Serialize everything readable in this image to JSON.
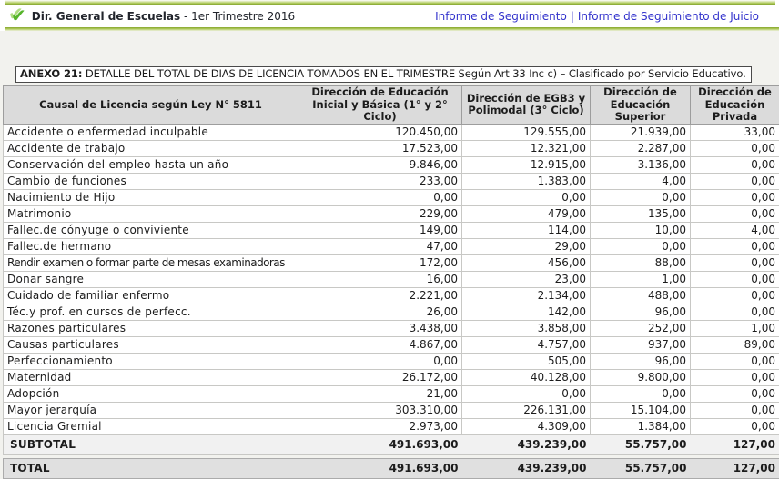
{
  "topbar": {
    "check_icon": "✔",
    "title_bold": "Dir. General de Escuelas",
    "title_rest": " - 1er Trimestre 2016",
    "links": [
      "Informe de Seguimiento",
      "Informe de Seguimiento de Juicio"
    ],
    "separator": "|"
  },
  "caption": {
    "bold": "ANEXO 21:",
    "text": " DETALLE DEL TOTAL DE DIAS DE LICENCIA TOMADOS EN EL TRIMESTRE Según Art 33 Inc c) – Clasificado por Servicio Educativo."
  },
  "table": {
    "columns": [
      "Causal de Licencia según Ley N° 5811",
      "Dirección de Educación Inicial y Básica (1° y 2° Ciclo)",
      "Dirección de EGB3 y Polimodal (3° Ciclo)",
      "Dirección de Educación Superior",
      "Dirección de Educación Privada"
    ],
    "rows": [
      {
        "label": "Accidente o enfermedad inculpable",
        "values": [
          "120.450,00",
          "129.555,00",
          "21.939,00",
          "33,00"
        ]
      },
      {
        "label": "Accidente de trabajo",
        "values": [
          "17.523,00",
          "12.321,00",
          "2.287,00",
          "0,00"
        ]
      },
      {
        "label": "Conservación del empleo hasta un año",
        "values": [
          "9.846,00",
          "12.915,00",
          "3.136,00",
          "0,00"
        ]
      },
      {
        "label": "Cambio de funciones",
        "values": [
          "233,00",
          "1.383,00",
          "4,00",
          "0,00"
        ]
      },
      {
        "label": "Nacimiento de Hijo",
        "values": [
          "0,00",
          "0,00",
          "0,00",
          "0,00"
        ]
      },
      {
        "label": "Matrimonio",
        "values": [
          "229,00",
          "479,00",
          "135,00",
          "0,00"
        ]
      },
      {
        "label": "Fallec.de cónyuge o conviviente",
        "values": [
          "149,00",
          "114,00",
          "10,00",
          "4,00"
        ]
      },
      {
        "label": "Fallec.de hermano",
        "values": [
          "47,00",
          "29,00",
          "0,00",
          "0,00"
        ]
      },
      {
        "label": "Rendir examen o formar parte de mesas examinadoras",
        "values": [
          "172,00",
          "456,00",
          "88,00",
          "0,00"
        ]
      },
      {
        "label": "Donar sangre",
        "values": [
          "16,00",
          "23,00",
          "1,00",
          "0,00"
        ]
      },
      {
        "label": "Cuidado de familiar enfermo",
        "values": [
          "2.221,00",
          "2.134,00",
          "488,00",
          "0,00"
        ]
      },
      {
        "label": "Téc.y prof. en cursos de perfecc.",
        "values": [
          "26,00",
          "142,00",
          "96,00",
          "0,00"
        ]
      },
      {
        "label": "Razones particulares",
        "values": [
          "3.438,00",
          "3.858,00",
          "252,00",
          "1,00"
        ]
      },
      {
        "label": "Causas particulares",
        "values": [
          "4.867,00",
          "4.757,00",
          "937,00",
          "89,00"
        ]
      },
      {
        "label": "Perfeccionamiento",
        "values": [
          "0,00",
          "505,00",
          "96,00",
          "0,00"
        ]
      },
      {
        "label": "Maternidad",
        "values": [
          "26.172,00",
          "40.128,00",
          "9.800,00",
          "0,00"
        ]
      },
      {
        "label": "Adopción",
        "values": [
          "21,00",
          "0,00",
          "0,00",
          "0,00"
        ]
      },
      {
        "label": "Mayor jerarquía",
        "values": [
          "303.310,00",
          "226.131,00",
          "15.104,00",
          "0,00"
        ]
      },
      {
        "label": "Licencia Gremial",
        "values": [
          "2.973,00",
          "4.309,00",
          "1.384,00",
          "0,00"
        ]
      }
    ],
    "subtotal": {
      "label": "SUBTOTAL",
      "values": [
        "491.693,00",
        "439.239,00",
        "55.757,00",
        "127,00"
      ]
    },
    "total": {
      "label": "TOTAL",
      "values": [
        "491.693,00",
        "439.239,00",
        "55.757,00",
        "127,00"
      ]
    }
  },
  "colors": {
    "accent_green": "#9ABB3E",
    "link_blue": "#3333CC",
    "header_bg": "#DBDBDB",
    "total_bg": "#E0E0E0",
    "subtotal_bg": "#F1F1F1"
  }
}
